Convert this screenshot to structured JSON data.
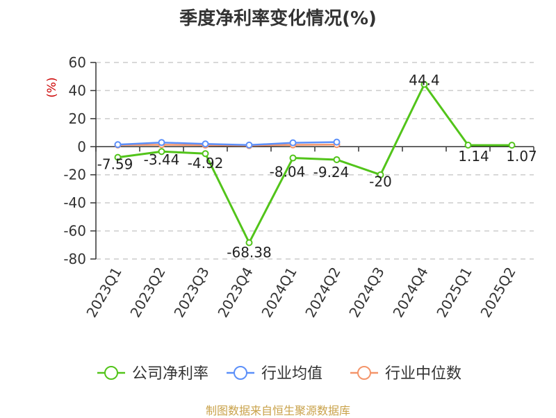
{
  "title": "季度净利率变化情况(%)",
  "source": "制图数据来自恒生聚源数据库",
  "chart_data": {
    "type": "line",
    "ylabel": "(%)",
    "ylim": [
      -80,
      60
    ],
    "yticks": [
      60,
      40,
      20,
      0,
      -20,
      -40,
      -60,
      -80
    ],
    "grid": true,
    "legend_position": "bottom",
    "categories": [
      "2023Q1",
      "2023Q2",
      "2023Q3",
      "2023Q4",
      "2024Q1",
      "2024Q2",
      "2024Q3",
      "2024Q4",
      "2025Q1",
      "2025Q2"
    ],
    "series": [
      {
        "name": "公司净利率",
        "color": "#52c41a",
        "values": [
          -7.59,
          -3.44,
          -4.92,
          -68.38,
          -8.04,
          -9.24,
          -20,
          44.4,
          1.14,
          1.07
        ],
        "labels": [
          "-7.59",
          "-3.44",
          "-4.92",
          "-68.38",
          "-8.04",
          "-9.24",
          "-20",
          "44.4",
          "1.14",
          "1.07"
        ]
      },
      {
        "name": "行业均值",
        "color": "#5b8ff9",
        "values": [
          1.5,
          3,
          2,
          1.2,
          2.8,
          3.3,
          null,
          null,
          null,
          null
        ]
      },
      {
        "name": "行业中位数",
        "color": "#f4956a",
        "values": [
          1.2,
          1.4,
          1.1,
          0.8,
          1.3,
          1.5,
          null,
          null,
          null,
          null
        ]
      }
    ]
  }
}
